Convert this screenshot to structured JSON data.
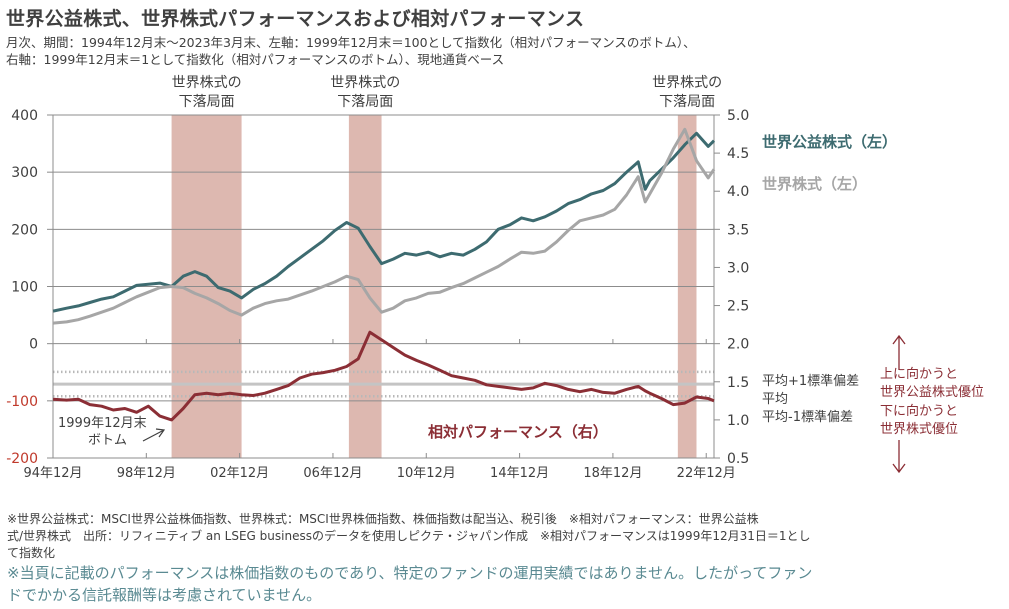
{
  "header": {
    "title": "世界公益株式、世界株式パフォーマンスおよび相対パフォーマンス",
    "subtitle_line1": "月次、期間：1994年12月末～2023年3月末、左軸：1999年12月末＝100として指数化（相対パフォーマンスのボトム）、",
    "subtitle_line2": "右軸：1999年12月末＝1として指数化（相対パフォーマンスのボトム）、現地通貨ベース"
  },
  "chart_data": {
    "type": "line",
    "title": "世界公益株式、世界株式パフォーマンスおよび相対パフォーマンス",
    "x_ticks": [
      "94年12月",
      "98年12月",
      "02年12月",
      "06年12月",
      "10年12月",
      "14年12月",
      "18年12月",
      "22年12月"
    ],
    "x_range": [
      1994.917,
      2023.25
    ],
    "left_axis": {
      "ticks": [
        "400",
        "300",
        "200",
        "100",
        "0",
        "-100",
        "-200"
      ],
      "ylim": [
        -200,
        400
      ]
    },
    "right_axis": {
      "ticks": [
        "5.0",
        "4.5",
        "4.0",
        "3.5",
        "3.0",
        "2.5",
        "2.0",
        "1.5",
        "1.0",
        "0.5"
      ],
      "ylim": [
        0.5,
        5.0
      ]
    },
    "grid": true,
    "shaded_periods": [
      {
        "label_line1": "世界株式の",
        "label_line2": "下落局面",
        "start": 2000.0,
        "end": 2003.0
      },
      {
        "label_line1": "世界株式の",
        "label_line2": "下落局面",
        "start": 2007.6,
        "end": 2009.0
      },
      {
        "label_line1": "世界株式の",
        "label_line2": "下落局面",
        "start": 2021.7,
        "end": 2022.5
      }
    ],
    "reference_lines": [
      {
        "name": "平均+1標準偏差",
        "value": 1.63,
        "style": "dotted"
      },
      {
        "name": "平均",
        "value": 1.47,
        "style": "solid"
      },
      {
        "name": "平均-1標準偏差",
        "value": 1.31,
        "style": "dotted"
      }
    ],
    "x": [
      1994.92,
      1995.5,
      1996.0,
      1996.5,
      1997.0,
      1997.5,
      1998.0,
      1998.5,
      1999.0,
      1999.5,
      2000.0,
      2000.5,
      2001.0,
      2001.5,
      2002.0,
      2002.5,
      2003.0,
      2003.5,
      2004.0,
      2004.5,
      2005.0,
      2005.5,
      2006.0,
      2006.5,
      2007.0,
      2007.5,
      2008.0,
      2008.5,
      2009.0,
      2009.5,
      2010.0,
      2010.5,
      2011.0,
      2011.5,
      2012.0,
      2012.5,
      2013.0,
      2013.5,
      2014.0,
      2014.5,
      2015.0,
      2015.5,
      2016.0,
      2016.5,
      2017.0,
      2017.5,
      2018.0,
      2018.5,
      2019.0,
      2019.5,
      2020.0,
      2020.3,
      2020.5,
      2021.0,
      2021.5,
      2022.0,
      2022.5,
      2023.0,
      2023.25
    ],
    "series": [
      {
        "name": "世界公益株式（左）",
        "axis": "left",
        "color": "#3d6b70",
        "values": [
          57,
          62,
          66,
          72,
          78,
          82,
          92,
          102,
          104,
          106,
          100,
          118,
          126,
          118,
          98,
          92,
          80,
          95,
          105,
          118,
          135,
          150,
          165,
          180,
          198,
          212,
          202,
          170,
          140,
          148,
          158,
          155,
          160,
          152,
          158,
          155,
          165,
          178,
          200,
          208,
          220,
          215,
          222,
          232,
          245,
          252,
          262,
          268,
          280,
          300,
          318,
          270,
          285,
          305,
          325,
          348,
          368,
          345,
          355
        ]
      },
      {
        "name": "世界株式（左）",
        "axis": "left",
        "color": "#a6a6a6",
        "values": [
          36,
          38,
          42,
          48,
          55,
          62,
          72,
          82,
          90,
          98,
          100,
          98,
          88,
          80,
          70,
          58,
          50,
          62,
          70,
          75,
          78,
          85,
          92,
          100,
          108,
          118,
          112,
          80,
          55,
          62,
          75,
          80,
          88,
          90,
          98,
          105,
          115,
          125,
          135,
          148,
          160,
          158,
          162,
          178,
          198,
          215,
          220,
          225,
          235,
          260,
          292,
          248,
          262,
          298,
          340,
          375,
          320,
          290,
          305
        ]
      },
      {
        "name": "相対パフォーマンス（右）",
        "axis": "right",
        "color": "#8b2e35",
        "values": [
          1.27,
          1.26,
          1.27,
          1.2,
          1.18,
          1.13,
          1.15,
          1.1,
          1.18,
          1.05,
          1.0,
          1.15,
          1.33,
          1.35,
          1.33,
          1.35,
          1.33,
          1.32,
          1.35,
          1.4,
          1.45,
          1.55,
          1.6,
          1.62,
          1.65,
          1.7,
          1.8,
          2.15,
          2.05,
          1.95,
          1.85,
          1.78,
          1.72,
          1.65,
          1.58,
          1.55,
          1.52,
          1.46,
          1.44,
          1.42,
          1.4,
          1.42,
          1.48,
          1.45,
          1.4,
          1.37,
          1.4,
          1.36,
          1.35,
          1.4,
          1.44,
          1.38,
          1.35,
          1.28,
          1.2,
          1.22,
          1.3,
          1.28,
          1.25
        ]
      }
    ],
    "legend": {
      "utility": "世界公益株式（左）",
      "world": "世界株式（左）",
      "relative": "相対パフォーマンス（右）",
      "ref_plus": "平均+1標準偏差",
      "ref_mean": "平均",
      "ref_minus": "平均-1標準偏差"
    },
    "annotations": {
      "bottom_line1": "1999年12月末",
      "bottom_line2": "ボトム",
      "up_line1": "上に向かうと",
      "up_line2": "世界公益株式優位",
      "down_line1": "下に向かうと",
      "down_line2": "世界株式優位"
    }
  },
  "colors": {
    "utility": "#3d6b70",
    "world": "#a6a6a6",
    "relative": "#8b2e35",
    "band": "#ddb8b0",
    "note": "#5a8a92",
    "axis_red": "#c0392b"
  },
  "footer": {
    "line1": "※世界公益株式：MSCI世界公益株価指数、世界株式：MSCI世界株価指数、株価指数は配当込、税引後　※相対パフォーマンス：世界公益株",
    "line2": "式/世界株式　出所：リフィニティブ an LSEG businessのデータを使用しピクテ・ジャパン作成　※相対パフォーマンスは1999年12月31日＝1とし",
    "line3": "て指数化",
    "note_line1": "※当頁に記載のパフォーマンスは株価指数のものであり、特定のファンドの運用実績ではありません。したがってファン",
    "note_line2": "ドでかかる信託報酬等は考慮されていません。"
  }
}
